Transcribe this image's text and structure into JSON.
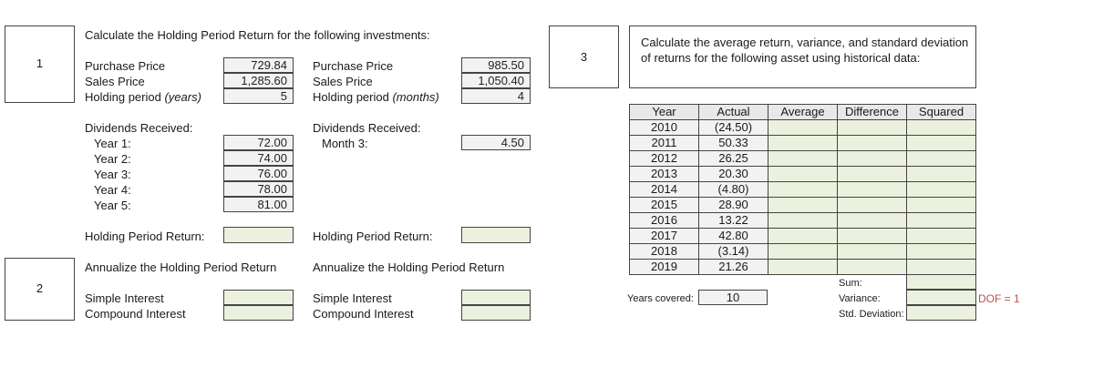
{
  "section1": {
    "number": "1",
    "title": "Calculate the Holding Period Return for the following investments:",
    "left": {
      "purchase_label": "Purchase Price",
      "purchase_value": "729.84",
      "sales_label": "Sales Price",
      "sales_value": "1,285.60",
      "holding_label": "Holding period",
      "holding_unit": "(years)",
      "holding_value": "5",
      "dividends_label": "Dividends Received:",
      "dividends": [
        {
          "label": "Year 1:",
          "value": "72.00"
        },
        {
          "label": "Year 2:",
          "value": "74.00"
        },
        {
          "label": "Year 3:",
          "value": "76.00"
        },
        {
          "label": "Year 4:",
          "value": "78.00"
        },
        {
          "label": "Year 5:",
          "value": "81.00"
        }
      ],
      "hpr_label": "Holding Period Return:"
    },
    "right": {
      "purchase_label": "Purchase Price",
      "purchase_value": "985.50",
      "sales_label": "Sales Price",
      "sales_value": "1,050.40",
      "holding_label": "Holding period",
      "holding_unit": "(months)",
      "holding_value": "4",
      "dividends_label": "Dividends Received:",
      "month_label": "Month 3:",
      "month_value": "4.50",
      "hpr_label": "Holding Period Return:"
    }
  },
  "section2": {
    "number": "2",
    "left_title": "Annualize the Holding Period Return",
    "right_title": "Annualize the Holding Period Return",
    "simple_label": "Simple Interest",
    "compound_label": "Compound Interest"
  },
  "section3": {
    "number": "3",
    "instructions": "Calculate the average return, variance, and standard deviation of returns for the following asset using historical data:",
    "headers": [
      "Year",
      "Actual",
      "Average",
      "Difference",
      "Squared"
    ],
    "rows": [
      {
        "year": "2010",
        "actual": "(24.50)"
      },
      {
        "year": "2011",
        "actual": "50.33"
      },
      {
        "year": "2012",
        "actual": "26.25"
      },
      {
        "year": "2013",
        "actual": "20.30"
      },
      {
        "year": "2014",
        "actual": "(4.80)"
      },
      {
        "year": "2015",
        "actual": "28.90"
      },
      {
        "year": "2016",
        "actual": "13.22"
      },
      {
        "year": "2017",
        "actual": "42.80"
      },
      {
        "year": "2018",
        "actual": "(3.14)"
      },
      {
        "year": "2019",
        "actual": "21.26"
      }
    ],
    "years_covered_label": "Years covered:",
    "years_covered_value": "10",
    "sum_label": "Sum:",
    "variance_label": "Variance:",
    "std_label": "Std. Deviation:",
    "dof_note": "DOF = 1"
  }
}
